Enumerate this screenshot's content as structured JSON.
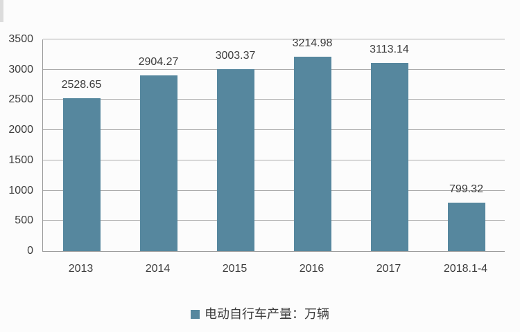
{
  "chart_data": {
    "type": "bar",
    "categories": [
      "2013",
      "2014",
      "2015",
      "2016",
      "2017",
      "2018.1-4"
    ],
    "values": [
      2528.65,
      2904.27,
      3003.37,
      3214.98,
      3113.14,
      799.32
    ],
    "value_labels": [
      "2528.65",
      "2904.27",
      "3003.37",
      "3214.98",
      "3113.14",
      "799.32"
    ],
    "title": "",
    "xlabel": "",
    "ylabel": "",
    "legend": "电动自行车产量：万辆",
    "legend_position": "bottom",
    "ylim": [
      0,
      3500
    ],
    "yticks": [
      0,
      500,
      1000,
      1500,
      2000,
      2500,
      3000,
      3500
    ],
    "grid": true
  },
  "colors": {
    "bar": "#56879e",
    "grid": "#ababab",
    "axis": "#9a9a9a",
    "text": "#3c3c3c",
    "background": "#fcfcfc"
  }
}
